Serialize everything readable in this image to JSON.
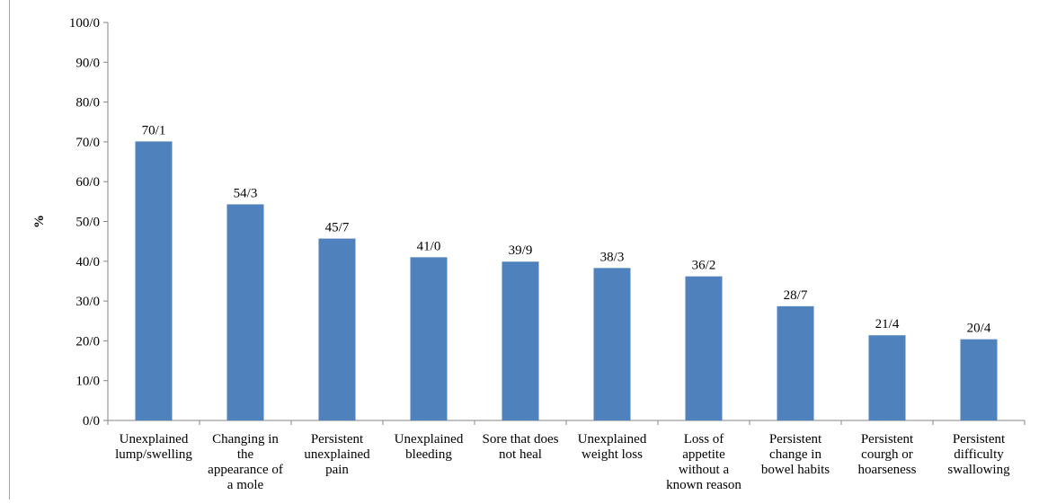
{
  "chart_data": {
    "type": "bar",
    "title": "",
    "xlabel": "",
    "ylabel": "%",
    "ylim": [
      0,
      100
    ],
    "yticks": [
      0,
      10,
      20,
      30,
      40,
      50,
      60,
      70,
      80,
      90,
      100
    ],
    "ytick_labels": [
      "0/0",
      "10/0",
      "20/0",
      "30/0",
      "40/0",
      "50/0",
      "60/0",
      "70/0",
      "80/0",
      "90/0",
      "100/0"
    ],
    "grid": false,
    "legend": "none",
    "bar_color": "#4f81bd",
    "categories": [
      [
        "Unexplained",
        "lump/swelling"
      ],
      [
        "Changing in",
        "the",
        "appearance of",
        "a mole"
      ],
      [
        "Persistent",
        "unexplained",
        "pain"
      ],
      [
        "Unexplained",
        "bleeding"
      ],
      [
        "Sore that does",
        "not heal"
      ],
      [
        "Unexplained",
        "weight loss"
      ],
      [
        "Loss of",
        "appetite",
        "without a",
        "known reason"
      ],
      [
        "Persistent",
        "change in",
        "bowel habits"
      ],
      [
        "Persistent",
        "courgh or",
        "hoarseness"
      ],
      [
        "Persistent",
        "difficulty",
        "swallowing"
      ]
    ],
    "values": [
      70.1,
      54.3,
      45.7,
      41.0,
      39.9,
      38.3,
      36.2,
      28.7,
      21.4,
      20.4
    ],
    "data_labels": [
      "70/1",
      "54/3",
      "45/7",
      "41/0",
      "39/9",
      "38/3",
      "36/2",
      "28/7",
      "21/4",
      "20/4"
    ]
  }
}
